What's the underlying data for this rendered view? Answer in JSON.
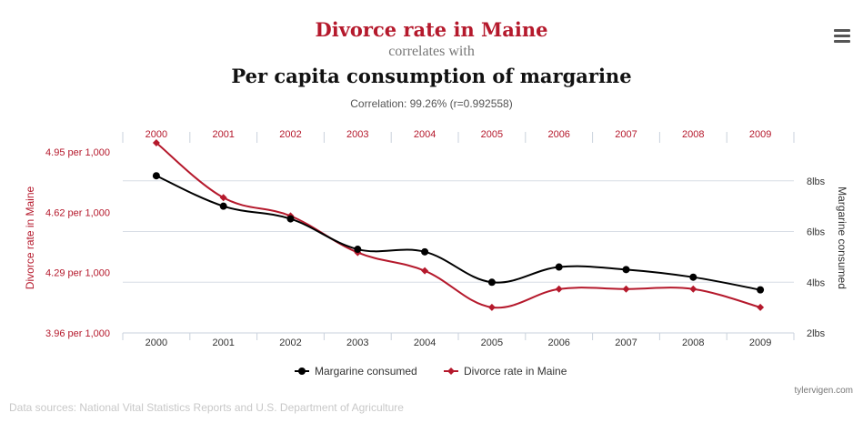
{
  "header": {
    "title_primary": "Divorce rate in Maine",
    "connector": "correlates with",
    "title_secondary": "Per capita consumption of margarine",
    "correlation": "Correlation: 99.26% (r=0.992558)"
  },
  "footer": {
    "credit": "tylervigen.com",
    "sources": "Data sources: National Vital Statistics Reports and U.S. Department of Agriculture"
  },
  "colors": {
    "divorce": "#b5192c",
    "margarine": "#000000",
    "grid": "#d8dee6",
    "axis_text": "#333333"
  },
  "chart_data": {
    "type": "line",
    "x": [
      "2000",
      "2001",
      "2002",
      "2003",
      "2004",
      "2005",
      "2006",
      "2007",
      "2008",
      "2009"
    ],
    "series": [
      {
        "name": "Margarine consumed",
        "axis": "right",
        "values": [
          8.2,
          7.0,
          6.5,
          5.3,
          5.2,
          4.0,
          4.6,
          4.5,
          4.2,
          3.7
        ]
      },
      {
        "name": "Divorce rate in Maine",
        "axis": "left",
        "values": [
          5.0,
          4.7,
          4.6,
          4.4,
          4.3,
          4.1,
          4.2,
          4.2,
          4.2,
          4.1
        ]
      }
    ],
    "y_left": {
      "label": "Divorce rate in Maine",
      "ticks": [
        3.96,
        4.29,
        4.62,
        4.95
      ],
      "tick_labels": [
        "3.96 per 1,000",
        "4.29 per 1,000",
        "4.62 per 1,000",
        "4.95 per 1,000"
      ],
      "ylim": [
        3.96,
        5.0
      ]
    },
    "y_right": {
      "label": "Margarine consumed",
      "ticks": [
        2,
        4,
        6,
        8
      ],
      "tick_labels": [
        "2lbs",
        "4lbs",
        "6lbs",
        "8lbs"
      ],
      "ylim": [
        2,
        9.5
      ]
    },
    "grid": true,
    "legend_position": "bottom-center"
  }
}
